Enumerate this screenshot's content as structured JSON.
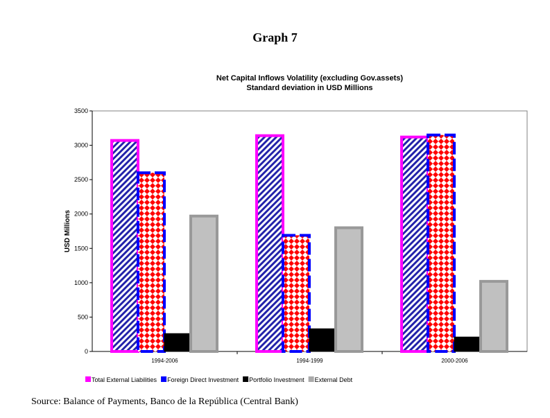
{
  "heading": "Graph 7",
  "source": "Source: Balance of Payments, Banco de la República (Central Bank)",
  "chart_data": {
    "type": "bar",
    "title": "Net Capital Inflows Volatility (excluding Gov.assets)",
    "subtitle": "Standard deviation in USD Millions",
    "xlabel": "",
    "ylabel": "USD Millions",
    "ylim": [
      0,
      3500
    ],
    "yticks": [
      0,
      500,
      1000,
      1500,
      2000,
      2500,
      3000,
      3500
    ],
    "categories": [
      "1994-2006",
      "1994-1999",
      "2000-2006"
    ],
    "grid": false,
    "legend_position": "bottom",
    "series": [
      {
        "name": "Total External Liabilities",
        "values": [
          3070,
          3140,
          3120
        ],
        "color": "#ff00ff",
        "pattern": "blue diagonal stripes"
      },
      {
        "name": "Foreign Direct Investment",
        "values": [
          2600,
          1690,
          3150
        ],
        "color": "#0000ff",
        "pattern": "red diamonds, dashed blue border"
      },
      {
        "name": "Portfolio Investment",
        "values": [
          260,
          330,
          210
        ],
        "color": "#000000"
      },
      {
        "name": "External Debt",
        "values": [
          1970,
          1800,
          1020
        ],
        "color": "#999999",
        "fill": "#c0c0c0"
      }
    ]
  }
}
